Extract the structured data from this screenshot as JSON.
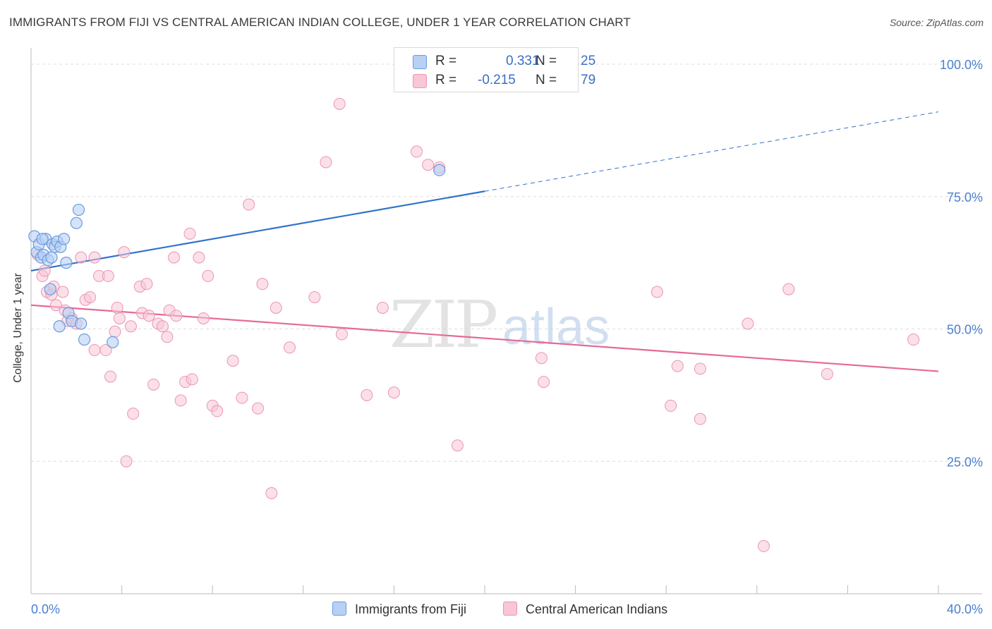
{
  "title": "IMMIGRANTS FROM FIJI VS CENTRAL AMERICAN INDIAN COLLEGE, UNDER 1 YEAR CORRELATION CHART",
  "source": "Source: ZipAtlas.com",
  "watermark": {
    "zip": "ZIP",
    "atlas": "atlas"
  },
  "legend": {
    "r_label": "R =",
    "n_label": "N =",
    "series1": {
      "r": "0.331",
      "n": "25"
    },
    "series2": {
      "r": "-0.215",
      "n": "79"
    }
  },
  "colors": {
    "fiji_fill": "#b8d0f4",
    "fiji_stroke": "#6a9be0",
    "fiji_line": "#2f72cc",
    "cai_fill": "#f8c6d6",
    "cai_stroke": "#ec94b3",
    "cai_line": "#e56a98",
    "tick_label": "#4a7fd0",
    "grid": "#dcdcdc"
  },
  "chart_data": {
    "type": "scatter",
    "title": "IMMIGRANTS FROM FIJI VS CENTRAL AMERICAN INDIAN COLLEGE, UNDER 1 YEAR CORRELATION CHART",
    "xlabel": "",
    "ylabel": "College, Under 1 year",
    "xlim": [
      0,
      40
    ],
    "ylim": [
      0,
      102
    ],
    "x_tick_labels": [
      "0.0%",
      "40.0%"
    ],
    "y_tick_labels": [
      "25.0%",
      "50.0%",
      "75.0%",
      "100.0%"
    ],
    "y_ticks": [
      25,
      50,
      75,
      100
    ],
    "grid": true,
    "legend_position": "top-center",
    "series": [
      {
        "name": "Immigrants from Fiji",
        "points": [
          [
            0.15,
            67.5
          ],
          [
            0.25,
            64.5
          ],
          [
            0.35,
            66
          ],
          [
            0.45,
            63.5
          ],
          [
            0.55,
            64
          ],
          [
            0.65,
            67
          ],
          [
            0.75,
            63
          ],
          [
            0.85,
            57.5
          ],
          [
            0.95,
            66
          ],
          [
            1.05,
            65.5
          ],
          [
            1.15,
            66.5
          ],
          [
            1.3,
            65.5
          ],
          [
            1.45,
            67
          ],
          [
            1.55,
            62.5
          ],
          [
            1.65,
            53
          ],
          [
            1.8,
            51.5
          ],
          [
            2.0,
            70
          ],
          [
            2.1,
            72.5
          ],
          [
            2.2,
            51
          ],
          [
            2.35,
            48
          ],
          [
            1.25,
            50.5
          ],
          [
            3.6,
            47.5
          ],
          [
            0.5,
            67
          ],
          [
            0.9,
            63.5
          ],
          [
            18.0,
            80
          ]
        ],
        "trend": {
          "x0": 0,
          "y0": 61,
          "x1": 20,
          "y1": 76,
          "x_dashed_end": 40,
          "y_dashed_end": 91
        }
      },
      {
        "name": "Central American Indians",
        "points": [
          [
            0.3,
            64
          ],
          [
            0.5,
            60
          ],
          [
            0.7,
            57
          ],
          [
            0.9,
            56.5
          ],
          [
            1.0,
            58
          ],
          [
            1.1,
            54.5
          ],
          [
            1.4,
            57
          ],
          [
            1.6,
            51.5
          ],
          [
            1.8,
            52
          ],
          [
            2.0,
            51
          ],
          [
            2.2,
            63.5
          ],
          [
            2.4,
            55.5
          ],
          [
            2.6,
            56
          ],
          [
            2.8,
            63.5
          ],
          [
            2.8,
            46
          ],
          [
            3.0,
            60
          ],
          [
            3.3,
            46
          ],
          [
            3.4,
            60
          ],
          [
            3.5,
            41
          ],
          [
            3.7,
            49.5
          ],
          [
            3.8,
            54
          ],
          [
            3.9,
            52
          ],
          [
            4.1,
            64.5
          ],
          [
            4.2,
            25
          ],
          [
            4.4,
            50.5
          ],
          [
            4.5,
            34
          ],
          [
            4.8,
            58
          ],
          [
            4.9,
            53
          ],
          [
            5.1,
            58.5
          ],
          [
            5.2,
            52.5
          ],
          [
            5.4,
            39.5
          ],
          [
            5.6,
            51
          ],
          [
            5.8,
            50.5
          ],
          [
            6.0,
            48.5
          ],
          [
            6.1,
            53.5
          ],
          [
            6.3,
            63.5
          ],
          [
            6.4,
            52.5
          ],
          [
            6.6,
            36.5
          ],
          [
            6.8,
            40
          ],
          [
            7.0,
            68
          ],
          [
            7.1,
            40.5
          ],
          [
            7.4,
            63.5
          ],
          [
            7.6,
            52
          ],
          [
            7.8,
            60
          ],
          [
            8.0,
            35.5
          ],
          [
            8.2,
            34.5
          ],
          [
            8.9,
            44
          ],
          [
            9.3,
            37
          ],
          [
            9.6,
            73.5
          ],
          [
            10.0,
            35
          ],
          [
            10.2,
            58.5
          ],
          [
            10.6,
            19
          ],
          [
            10.8,
            54
          ],
          [
            11.4,
            46.5
          ],
          [
            12.5,
            56
          ],
          [
            13.0,
            81.5
          ],
          [
            13.6,
            92.5
          ],
          [
            13.7,
            49
          ],
          [
            14.8,
            37.5
          ],
          [
            15.5,
            54
          ],
          [
            16.0,
            38
          ],
          [
            17.0,
            83.5
          ],
          [
            17.5,
            81
          ],
          [
            18.0,
            80.5
          ],
          [
            18.8,
            28
          ],
          [
            22.5,
            44.5
          ],
          [
            22.6,
            40
          ],
          [
            27.6,
            57
          ],
          [
            28.2,
            35.5
          ],
          [
            28.5,
            43
          ],
          [
            29.5,
            33
          ],
          [
            29.5,
            42.5
          ],
          [
            31.6,
            51
          ],
          [
            32.3,
            9
          ],
          [
            33.4,
            57.5
          ],
          [
            35.1,
            41.5
          ],
          [
            38.9,
            48
          ],
          [
            0.6,
            61
          ],
          [
            1.5,
            53.5
          ]
        ],
        "trend": {
          "x0": 0,
          "y0": 54.5,
          "x1": 40,
          "y1": 42
        }
      }
    ]
  },
  "bottom_legend": {
    "fiji_label": "Immigrants from Fiji",
    "cai_label": "Central American Indians"
  }
}
